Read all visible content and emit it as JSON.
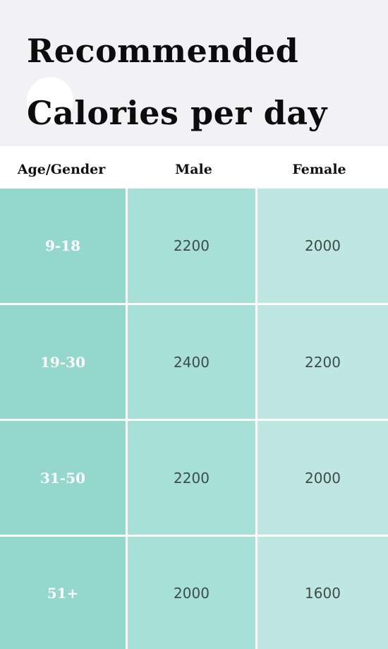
{
  "title": {
    "line1": "Recommended",
    "line2": "Calories per day"
  },
  "table": {
    "headers": [
      "Age/Gender",
      "Male",
      "Female"
    ],
    "rows": [
      {
        "age": "9-18",
        "male": "2200",
        "female": "2000"
      },
      {
        "age": "19-30",
        "male": "2400",
        "female": "2200"
      },
      {
        "age": "31-50",
        "male": "2200",
        "female": "2000"
      },
      {
        "age": "51+",
        "male": "2000",
        "female": "1600"
      }
    ]
  },
  "colors": {
    "header_bg": "#f2f2f4",
    "col_age": "#94d8cd",
    "col_male": "#a6e0d7",
    "col_female": "#bfe7e1"
  }
}
